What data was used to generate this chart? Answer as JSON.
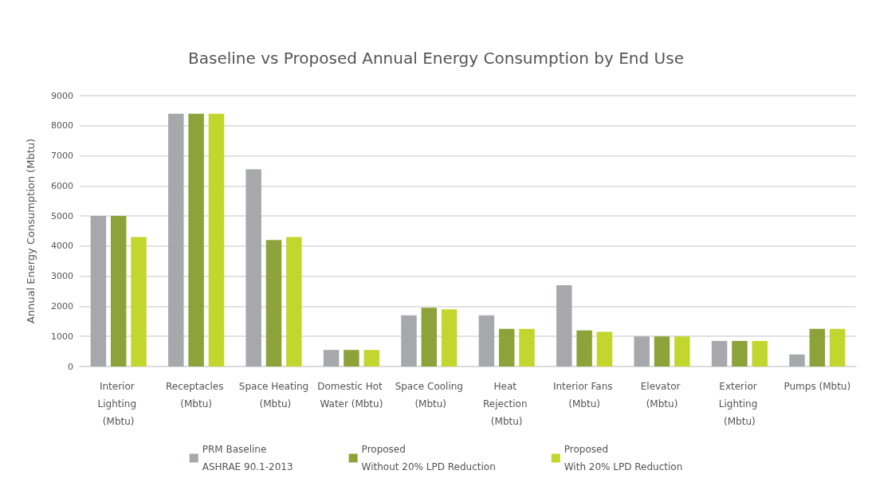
{
  "chart_data": {
    "type": "bar",
    "title": "Baseline vs Proposed Annual Energy Consumption by End Use",
    "ylabel": "Annual Energy Consumption (Mbtu)",
    "categories": [
      "Interior Lighting (Mbtu)",
      "Receptacles (Mbtu)",
      "Space Heating (Mbtu)",
      "Domestic Hot Water (Mbtu)",
      "Space Cooling (Mbtu)",
      "Heat Rejection (Mbtu)",
      "Interior Fans (Mbtu)",
      "Elevator (Mbtu)",
      "Exterior Lighting (Mbtu)",
      "Pumps (Mbtu)"
    ],
    "series": [
      {
        "name": "PRM Baseline\nASHRAE 90.1-2013",
        "color": "#a6a8ab",
        "values": [
          5000,
          8400,
          6550,
          550,
          1700,
          1700,
          2700,
          1000,
          850,
          400
        ]
      },
      {
        "name": "Proposed\nWithout 20% LPD Reduction",
        "color": "#8ea23a",
        "values": [
          5000,
          8400,
          4200,
          550,
          1950,
          1250,
          1200,
          1000,
          850,
          1250
        ]
      },
      {
        "name": "Proposed\nWith 20% LPD Reduction",
        "color": "#c3d62e",
        "values": [
          4300,
          8400,
          4300,
          550,
          1900,
          1250,
          1150,
          1000,
          850,
          1250
        ]
      }
    ],
    "ylim": [
      0,
      9000
    ],
    "yticks": [
      0,
      1000,
      2000,
      3000,
      4000,
      5000,
      6000,
      7000,
      8000,
      9000
    ],
    "grid": "y",
    "legend": "bottom"
  }
}
